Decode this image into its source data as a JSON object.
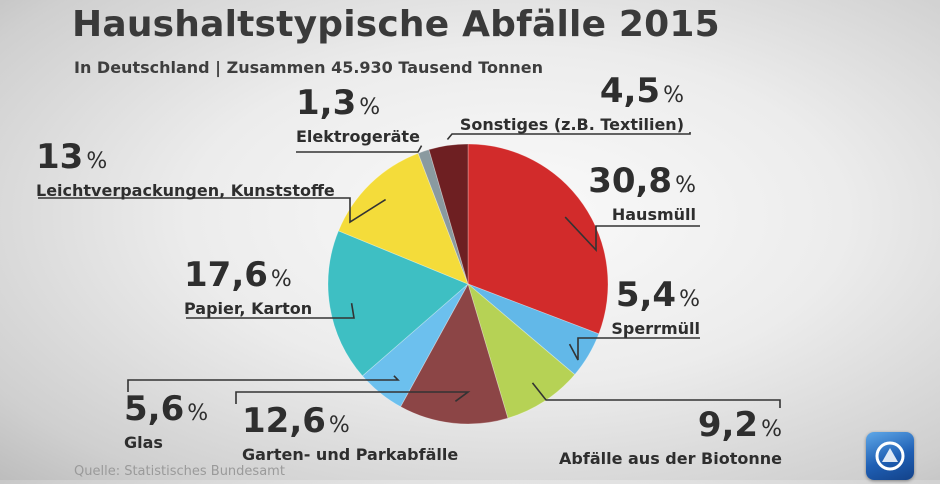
{
  "header": {
    "title": "Haushaltstypische Abfälle 2015",
    "subtitle": "In Deutschland | Zusammen 45.930 Tausend Tonnen"
  },
  "source": "Quelle: Statistisches Bundesamt",
  "logo": {
    "icon": "tagesschau-logo-icon"
  },
  "chart_data": {
    "type": "pie",
    "title": "Haushaltstypische Abfälle 2015",
    "subtitle": "In Deutschland | Zusammen 45.930 Tausend Tonnen",
    "unit": "%",
    "slices": [
      {
        "label": "Hausmüll",
        "value": 30.8,
        "value_text": "30,8",
        "color": "#d22b2b"
      },
      {
        "label": "Sperrmüll",
        "value": 5.4,
        "value_text": "5,4",
        "color": "#62b8e8"
      },
      {
        "label": "Abfälle aus der Biotonne",
        "value": 9.2,
        "value_text": "9,2",
        "color": "#b6d255"
      },
      {
        "label": "Garten- und Parkabfälle",
        "value": 12.6,
        "value_text": "12,6",
        "color": "#8c4546"
      },
      {
        "label": "Glas",
        "value": 5.6,
        "value_text": "5,6",
        "color": "#6cc0ee"
      },
      {
        "label": "Papier, Karton",
        "value": 17.6,
        "value_text": "17,6",
        "color": "#3ebfc3"
      },
      {
        "label": "Leichtverpackungen, Kunststoffe",
        "value": 13,
        "value_text": "13",
        "color": "#f4dc3a"
      },
      {
        "label": "Elektrogeräte",
        "value": 1.3,
        "value_text": "1,3",
        "color": "#8a9aa0"
      },
      {
        "label": "Sonstiges (z.B. Textilien)",
        "value": 4.5,
        "value_text": "4,5",
        "color": "#6e1f22"
      }
    ]
  }
}
